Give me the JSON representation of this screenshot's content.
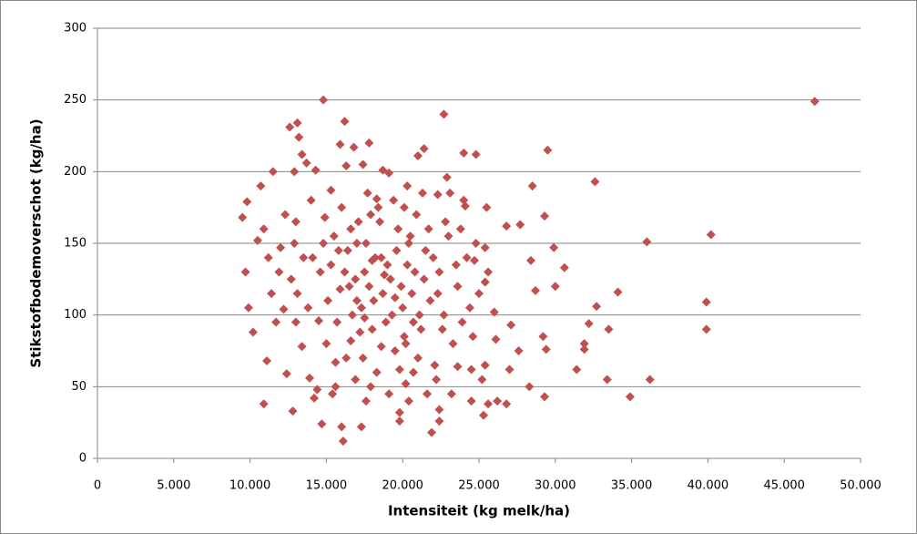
{
  "chart_data": {
    "type": "scatter",
    "x_label": "Intensiteit (kg melk/ha)",
    "y_label": "Stikstofbodemoverschot (kg/ha)",
    "color": "#c0504d",
    "grid": true,
    "xlim": [
      0,
      50000
    ],
    "xticks": [
      0,
      {
        "value": 5000,
        "label": "5.000"
      },
      {
        "value": 10000,
        "label": "10.000"
      },
      {
        "value": 15000,
        "label": "15.000"
      },
      {
        "value": 20000,
        "label": "20.000"
      },
      {
        "value": 25000,
        "label": "25.000"
      },
      {
        "value": 30000,
        "label": "30.000"
      },
      {
        "value": 35000,
        "label": "35.000"
      },
      {
        "value": 40000,
        "label": "40.000"
      },
      {
        "value": 45000,
        "label": "45.000"
      },
      {
        "value": 50000,
        "label": "50.000"
      }
    ],
    "ylim": [
      0,
      300
    ],
    "yticks": [
      0,
      50,
      100,
      150,
      200,
      250,
      300
    ],
    "x": [
      47000,
      14800,
      40200,
      36000,
      39900,
      39900,
      36200,
      34900,
      33400,
      33500,
      34100,
      32600,
      32700,
      32200,
      31900,
      31900,
      31400,
      30600,
      29900,
      30000,
      29500,
      29300,
      29300,
      29400,
      29200,
      28500,
      28400,
      28300,
      28700,
      27700,
      26800,
      27600,
      26800,
      27000,
      27100,
      26200,
      26000,
      26100,
      25500,
      25400,
      25400,
      25300,
      25600,
      25400,
      24800,
      24000,
      24500,
      24500,
      24700,
      24100,
      23800,
      23600,
      23100,
      22700,
      22900,
      22300,
      22400,
      22400,
      21900,
      21400,
      21000,
      20300,
      20400,
      19800,
      19800,
      20200,
      20700,
      20100,
      19100,
      18700,
      18300,
      17800,
      17400,
      17300,
      17600,
      16800,
      16300,
      16200,
      16100,
      16000,
      15900,
      15300,
      14700,
      14900,
      14300,
      14400,
      13700,
      13400,
      13100,
      13200,
      12600,
      12900,
      12800,
      12400,
      11900,
      11500,
      10900,
      11100,
      10700,
      9800,
      9500,
      9700,
      9900,
      10200,
      10500,
      10900,
      11400,
      12000,
      12200,
      13000,
      13100,
      13400,
      13900,
      14100,
      14500,
      14200,
      15400,
      15600,
      15800,
      16500,
      16700,
      17000,
      17200,
      17500,
      17900,
      18100,
      18300,
      18600,
      18900,
      19200,
      19500,
      19700,
      20000,
      20300,
      20600,
      20900,
      21200,
      21500,
      21800,
      22100,
      22400,
      22700,
      23000,
      23300,
      23600,
      23900,
      24200,
      24400,
      24600,
      25000,
      25200,
      25600,
      15100,
      15300,
      15500,
      15700,
      16000,
      16200,
      16400,
      16600,
      16900,
      17100,
      17300,
      17600,
      17800,
      18000,
      18200,
      18500,
      18700,
      19000,
      19300,
      19600,
      19900,
      20200,
      20500,
      20800,
      21100,
      21400,
      21700,
      22000,
      22300,
      22600,
      14000,
      14600,
      14800,
      13800,
      13500,
      12700,
      12300,
      11700,
      11200,
      17700,
      18400,
      19400,
      20100,
      21300,
      15600,
      16900,
      17900,
      19100,
      20400,
      21600,
      23200,
      24000,
      13000,
      12900,
      15000,
      16300,
      17400,
      18600,
      19800,
      21000,
      22200,
      23500,
      24800,
      17000,
      17500,
      18000,
      18800,
      16600,
      15900,
      19500,
      20700,
      22800
    ],
    "values": [
      249,
      250,
      156,
      151,
      109,
      90,
      55,
      43,
      55,
      90,
      116,
      193,
      106,
      94,
      80,
      76,
      62,
      133,
      147,
      120,
      215,
      169,
      43,
      76,
      85,
      190,
      138,
      50,
      117,
      163,
      162,
      75,
      38,
      62,
      93,
      40,
      102,
      83,
      175,
      147,
      65,
      30,
      38,
      123,
      212,
      213,
      40,
      62,
      138,
      176,
      160,
      64,
      185,
      240,
      196,
      184,
      26,
      34,
      18,
      216,
      211,
      190,
      150,
      26,
      32,
      52,
      60,
      85,
      199,
      201,
      181,
      220,
      205,
      22,
      40,
      217,
      204,
      235,
      12,
      22,
      219,
      187,
      24,
      168,
      201,
      48,
      206,
      212,
      234,
      224,
      231,
      200,
      33,
      59,
      130,
      200,
      38,
      68,
      190,
      179,
      168,
      130,
      105,
      88,
      152,
      160,
      115,
      147,
      104,
      165,
      115,
      78,
      56,
      140,
      96,
      42,
      45,
      67,
      145,
      120,
      100,
      150,
      88,
      130,
      170,
      110,
      60,
      140,
      95,
      125,
      75,
      160,
      105,
      135,
      115,
      170,
      90,
      145,
      110,
      65,
      130,
      100,
      155,
      80,
      120,
      95,
      140,
      105,
      85,
      115,
      55,
      130,
      110,
      135,
      155,
      95,
      175,
      130,
      145,
      82,
      125,
      165,
      105,
      150,
      120,
      90,
      140,
      165,
      115,
      135,
      100,
      145,
      120,
      80,
      155,
      130,
      100,
      125,
      160,
      140,
      115,
      90,
      180,
      130,
      150,
      105,
      140,
      125,
      170,
      95,
      140,
      185,
      175,
      180,
      175,
      185,
      50,
      55,
      50,
      45,
      40,
      45,
      45,
      180,
      95,
      150,
      80,
      70,
      70,
      78,
      62,
      70,
      55,
      135,
      150,
      110,
      98,
      138,
      128,
      160,
      118,
      112,
      95,
      165
    ]
  }
}
